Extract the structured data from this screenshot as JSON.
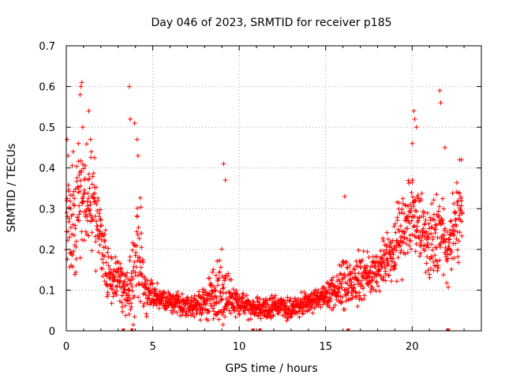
{
  "chart_data": {
    "type": "scatter",
    "title": "Day 046 of 2023, SRMTID for receiver p185",
    "xlabel": "GPS time / hours",
    "ylabel": "SRMTID / TECUs",
    "xlim": [
      0,
      24
    ],
    "ylim": [
      0,
      0.7
    ],
    "xticks": [
      0,
      5,
      10,
      15,
      20
    ],
    "yticks": [
      0,
      0.1,
      0.2,
      0.3,
      0.4,
      0.5,
      0.6,
      0.7
    ],
    "x_tick_labels": [
      "0",
      "5",
      "10",
      "15",
      "20"
    ],
    "y_tick_labels": [
      "0",
      "0.1",
      "0.2",
      "0.3",
      "0.4",
      "0.5",
      "0.6",
      "0.7"
    ],
    "grid": true,
    "marker": "+",
    "color": "#ff0000",
    "series": [
      {
        "name": "SRMTID",
        "profile_hours": [
          0,
          0.25,
          0.5,
          0.75,
          1.0,
          1.25,
          1.5,
          1.75,
          2.0,
          2.25,
          2.5,
          2.75,
          3.0,
          3.25,
          3.5,
          3.75,
          4.0,
          4.25,
          4.5,
          5.0,
          5.5,
          6.0,
          6.5,
          7.0,
          7.5,
          8.0,
          8.5,
          9.0,
          9.5,
          10.0,
          10.5,
          11.0,
          11.5,
          12.0,
          12.5,
          13.0,
          13.5,
          14.0,
          14.5,
          15.0,
          15.5,
          16.0,
          16.5,
          17.0,
          17.5,
          18.0,
          18.5,
          19.0,
          19.5,
          20.0,
          20.5,
          21.0,
          21.5,
          22.0,
          22.5,
          22.9
        ],
        "profile_median": [
          0.3,
          0.24,
          0.28,
          0.33,
          0.32,
          0.33,
          0.3,
          0.28,
          0.22,
          0.16,
          0.13,
          0.13,
          0.14,
          0.11,
          0.1,
          0.12,
          0.17,
          0.18,
          0.1,
          0.085,
          0.075,
          0.07,
          0.065,
          0.06,
          0.06,
          0.07,
          0.09,
          0.1,
          0.08,
          0.065,
          0.06,
          0.055,
          0.055,
          0.06,
          0.06,
          0.055,
          0.06,
          0.07,
          0.08,
          0.09,
          0.1,
          0.11,
          0.12,
          0.13,
          0.14,
          0.15,
          0.18,
          0.22,
          0.25,
          0.28,
          0.25,
          0.22,
          0.24,
          0.2,
          0.25,
          0.3
        ],
        "profile_spread": [
          0.09,
          0.1,
          0.12,
          0.12,
          0.1,
          0.09,
          0.08,
          0.08,
          0.07,
          0.05,
          0.04,
          0.04,
          0.05,
          0.04,
          0.04,
          0.07,
          0.12,
          0.12,
          0.04,
          0.02,
          0.02,
          0.02,
          0.02,
          0.02,
          0.02,
          0.03,
          0.05,
          0.07,
          0.03,
          0.02,
          0.02,
          0.02,
          0.02,
          0.02,
          0.02,
          0.02,
          0.02,
          0.02,
          0.02,
          0.02,
          0.03,
          0.05,
          0.04,
          0.05,
          0.04,
          0.04,
          0.04,
          0.06,
          0.07,
          0.08,
          0.07,
          0.07,
          0.09,
          0.06,
          0.07,
          0.06
        ],
        "points": [
          [
            0.05,
            0.47
          ],
          [
            0.1,
            0.43
          ],
          [
            0.4,
            0.44
          ],
          [
            0.7,
            0.46
          ],
          [
            0.8,
            0.58
          ],
          [
            0.85,
            0.6
          ],
          [
            0.9,
            0.61
          ],
          [
            0.95,
            0.5
          ],
          [
            1.3,
            0.54
          ],
          [
            1.4,
            0.47
          ],
          [
            1.45,
            0.44
          ],
          [
            3.65,
            0.6
          ],
          [
            3.7,
            0.52
          ],
          [
            3.95,
            0.51
          ],
          [
            4.1,
            0.47
          ],
          [
            4.15,
            0.43
          ],
          [
            9.1,
            0.41
          ],
          [
            9.2,
            0.37
          ],
          [
            16.1,
            0.33
          ],
          [
            20.1,
            0.54
          ],
          [
            20.15,
            0.52
          ],
          [
            20.25,
            0.5
          ],
          [
            20.0,
            0.46
          ],
          [
            21.6,
            0.59
          ],
          [
            21.65,
            0.56
          ],
          [
            21.9,
            0.45
          ],
          [
            22.75,
            0.42
          ],
          [
            22.85,
            0.42
          ]
        ],
        "rug_x": [
          3.3,
          3.8,
          10.8,
          11.2,
          16.3,
          22.1
        ]
      }
    ]
  }
}
